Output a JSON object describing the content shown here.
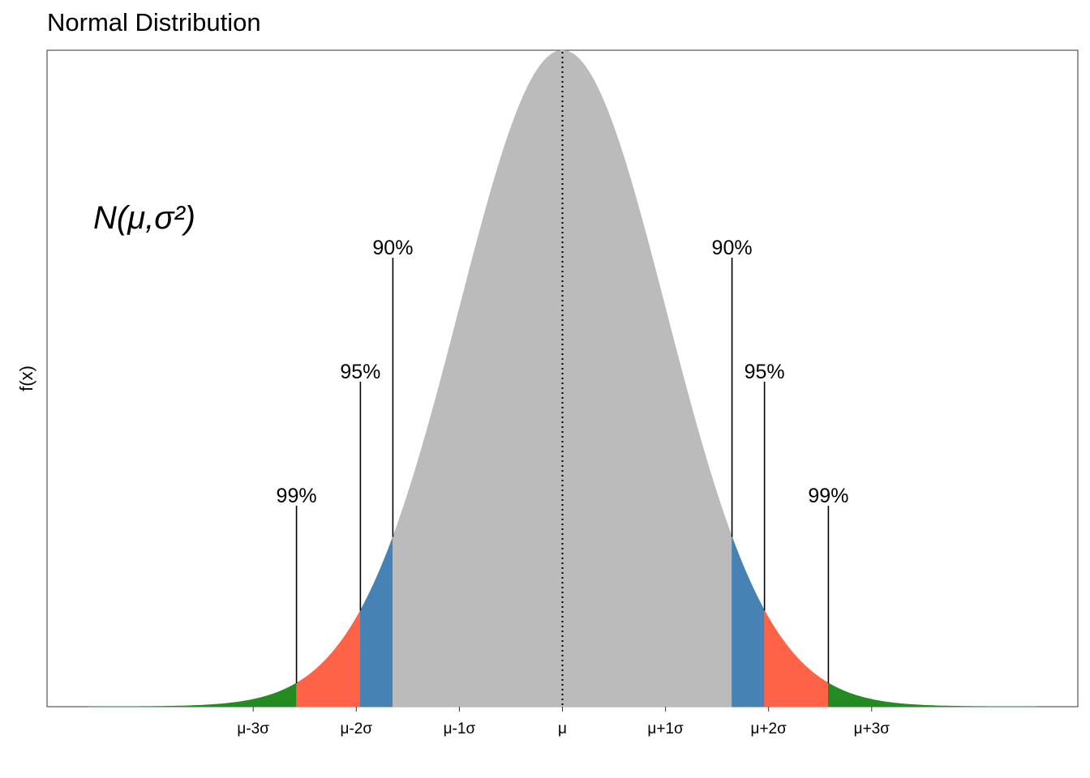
{
  "chart_data": {
    "type": "area",
    "title": "Normal Distribution",
    "xlabel": "",
    "ylabel": "f(x)",
    "annotation": "N(μ,σ²)",
    "x_range_sigma": [
      -5,
      5
    ],
    "y_axis_ticks_shown": false,
    "grid": false,
    "mean_line": "dotted",
    "x_ticks": [
      {
        "sigma": -3,
        "label": "μ-3σ"
      },
      {
        "sigma": -2,
        "label": "μ-2σ"
      },
      {
        "sigma": -1,
        "label": "μ-1σ"
      },
      {
        "sigma": 0,
        "label": "μ"
      },
      {
        "sigma": 1,
        "label": "μ+1σ"
      },
      {
        "sigma": 2,
        "label": "μ+2σ"
      },
      {
        "sigma": 3,
        "label": "μ+3σ"
      }
    ],
    "regions": [
      {
        "from": -4.6,
        "to": -2.58,
        "color": "#228B22"
      },
      {
        "from": -2.58,
        "to": -1.96,
        "color": "#FF6347"
      },
      {
        "from": -1.96,
        "to": -1.645,
        "color": "#4682B4"
      },
      {
        "from": -1.645,
        "to": 1.645,
        "color": "#BBBBBB"
      },
      {
        "from": 1.645,
        "to": 1.96,
        "color": "#4682B4"
      },
      {
        "from": 1.96,
        "to": 2.58,
        "color": "#FF6347"
      },
      {
        "from": 2.58,
        "to": 4.6,
        "color": "#228B22"
      }
    ],
    "annotations": [
      {
        "z": -2.58,
        "label": "99%"
      },
      {
        "z": -1.96,
        "label": "95%"
      },
      {
        "z": -1.645,
        "label": "90%"
      },
      {
        "z": 1.645,
        "label": "90%"
      },
      {
        "z": 1.96,
        "label": "95%"
      },
      {
        "z": 2.58,
        "label": "99%"
      }
    ]
  }
}
